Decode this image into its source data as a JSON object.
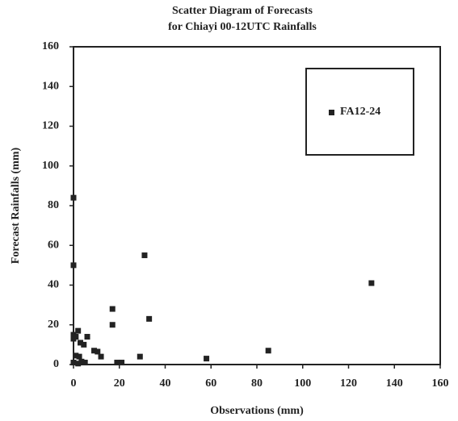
{
  "chart_data": {
    "type": "scatter",
    "title": [
      "Scatter Diagram of Forecasts",
      "for Chiayi 00-12UTC Rainfalls"
    ],
    "x_label": "Observations (mm)",
    "y_label": "Forecast Rainfalls (mm)",
    "xlim": [
      0,
      160
    ],
    "ylim": [
      0,
      160
    ],
    "xticks": [
      0,
      20,
      40,
      60,
      80,
      100,
      120,
      140,
      160
    ],
    "yticks": [
      0,
      20,
      40,
      60,
      80,
      100,
      120,
      140,
      160
    ],
    "legend": "upper right",
    "series": [
      {
        "name": "FA12-24",
        "color": "#222222",
        "x": [
          0,
          0,
          31,
          130,
          17,
          17,
          33,
          85,
          58,
          29,
          19,
          21,
          9,
          10.5,
          12,
          6,
          1,
          0,
          2,
          3,
          4.5,
          2.5,
          1,
          0,
          2,
          3.5,
          5,
          0
        ],
        "values": [
          84,
          50,
          55,
          41,
          28,
          20,
          23,
          7,
          3,
          4,
          1,
          1,
          7,
          6.5,
          4,
          14,
          14,
          13,
          17,
          11,
          10,
          4,
          4.5,
          1,
          0.5,
          1.5,
          1,
          15
        ]
      }
    ]
  }
}
